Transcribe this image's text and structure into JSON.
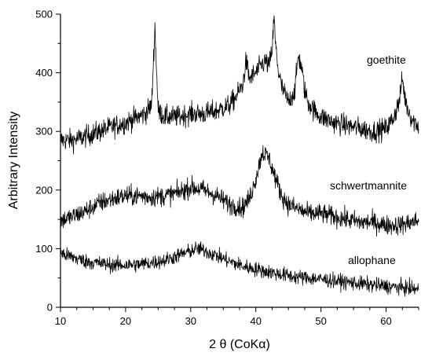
{
  "chart_data": {
    "type": "line",
    "title": "",
    "xlabel": "2 θ (CoKα)",
    "ylabel": "Arbitrary Intensity",
    "xlim": [
      10,
      65
    ],
    "ylim": [
      0,
      500
    ],
    "xticks": [
      10,
      20,
      30,
      40,
      50,
      60
    ],
    "yticks": [
      0,
      100,
      200,
      300,
      400,
      500
    ],
    "grid": false,
    "line_color": "#000000",
    "series": [
      {
        "name": "goethite",
        "x": [
          10,
          12,
          14,
          16,
          18,
          20,
          21,
          22,
          23,
          24,
          24.5,
          25,
          26,
          28,
          30,
          32,
          34,
          36,
          37,
          38,
          38.5,
          39,
          40,
          41,
          41.5,
          42,
          42.5,
          42.8,
          43,
          43.5,
          44,
          45,
          46,
          46.5,
          47,
          47.5,
          48,
          49,
          50,
          52,
          54,
          56,
          58,
          60,
          61,
          62,
          62.5,
          63,
          64,
          65
        ],
        "y": [
          285,
          285,
          292,
          300,
          308,
          315,
          320,
          325,
          330,
          345,
          480,
          335,
          325,
          325,
          330,
          330,
          335,
          345,
          360,
          380,
          420,
          390,
          400,
          415,
          420,
          410,
          440,
          495,
          450,
          400,
          375,
          350,
          370,
          430,
          410,
          370,
          350,
          335,
          325,
          315,
          310,
          305,
          300,
          305,
          320,
          350,
          390,
          350,
          320,
          310
        ]
      },
      {
        "name": "schwertmannite",
        "x": [
          10,
          12,
          14,
          16,
          18,
          20,
          22,
          24,
          26,
          28,
          30,
          32,
          34,
          36,
          38,
          39,
          40,
          41,
          42,
          43,
          44,
          45,
          46,
          48,
          50,
          52,
          54,
          56,
          58,
          60,
          62,
          64,
          65
        ],
        "y": [
          148,
          155,
          165,
          178,
          185,
          190,
          190,
          188,
          190,
          195,
          205,
          200,
          190,
          175,
          170,
          185,
          220,
          265,
          255,
          220,
          190,
          175,
          170,
          160,
          160,
          155,
          150,
          145,
          145,
          140,
          140,
          145,
          148
        ]
      },
      {
        "name": "allophane",
        "x": [
          10,
          12,
          14,
          16,
          18,
          20,
          22,
          24,
          26,
          28,
          30,
          31,
          32,
          34,
          36,
          38,
          40,
          42,
          44,
          46,
          48,
          50,
          52,
          54,
          56,
          58,
          60,
          62,
          64,
          65
        ],
        "y": [
          92,
          85,
          78,
          75,
          72,
          72,
          73,
          76,
          80,
          88,
          96,
          100,
          97,
          88,
          78,
          70,
          65,
          60,
          56,
          52,
          50,
          48,
          45,
          43,
          40,
          38,
          36,
          34,
          32,
          30
        ]
      }
    ]
  }
}
